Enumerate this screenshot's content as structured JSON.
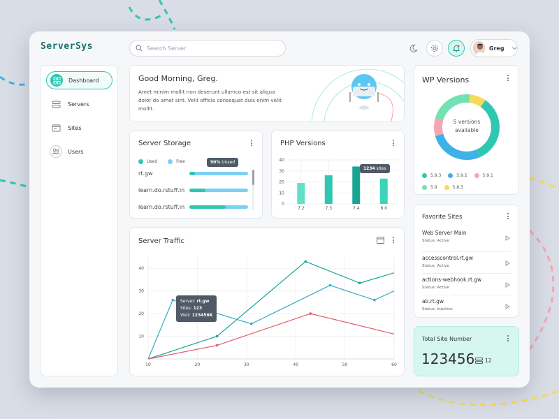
{
  "app": {
    "logo": "ServerSys"
  },
  "header": {
    "search_placeholder": "Search Server",
    "user_name": "Greg"
  },
  "sidebar": {
    "items": [
      {
        "label": "Dashboard",
        "icon": "dashboard-icon",
        "active": true
      },
      {
        "label": "Servers",
        "icon": "server-icon",
        "active": false
      },
      {
        "label": "Sites",
        "icon": "sites-icon",
        "active": false
      },
      {
        "label": "Users",
        "icon": "users-icon",
        "active": false
      }
    ]
  },
  "greeting": {
    "title": "Good Morning, Greg.",
    "text": "Amet minim mollit non deserunt ullamco est sit aliqua dolor do amet sint. Velit officia consequat duis enim velit mollit."
  },
  "server_storage": {
    "title": "Server Storage",
    "legend": [
      {
        "label": "Used",
        "color": "#2fc7b1"
      },
      {
        "label": "Free",
        "color": "#7dd0f5"
      }
    ],
    "tooltip_value": "90%",
    "tooltip_text": "Unsed",
    "rows": [
      {
        "label": "rt.gw",
        "used": 0.1
      },
      {
        "label": "learn.do.rstuff.in",
        "used": 0.27
      },
      {
        "label": "learn.do.rstuff.in",
        "used": 0.62
      }
    ]
  },
  "php_versions": {
    "title": "PHP Versions",
    "tooltip_value": "1234",
    "tooltip_text": "sites",
    "chart_data": {
      "type": "bar",
      "categories": [
        "7.2",
        "7.3",
        "7.4",
        "8.0"
      ],
      "values": [
        19,
        26,
        34,
        23
      ],
      "ylim": [
        0,
        40
      ],
      "yticks": [
        0,
        10,
        20,
        30,
        40
      ],
      "colors": [
        "#62e0c5",
        "#2fc7b1",
        "#19a594",
        "#3dd4b8"
      ],
      "grid": true
    }
  },
  "server_traffic": {
    "title": "Server Traffic",
    "tooltip": {
      "server_label": "Server:",
      "server_value": "rt.gw",
      "sites_label": "Sites:",
      "sites_value": "123",
      "visit_label": "Visit:",
      "visit_value": "123456K"
    },
    "chart_data": {
      "type": "line",
      "xlim": [
        10,
        60
      ],
      "ylim": [
        0,
        45
      ],
      "xticks": [
        10,
        20,
        30,
        40,
        50,
        60
      ],
      "yticks": [
        10,
        20,
        30,
        40
      ],
      "grid": true,
      "series": [
        {
          "color": "#19a594",
          "points": [
            [
              10,
              0
            ],
            [
              24,
              10
            ],
            [
              42,
              43
            ],
            [
              53,
              33.5
            ],
            [
              60,
              38
            ]
          ]
        },
        {
          "color": "#3aa8c8",
          "points": [
            [
              10,
              0
            ],
            [
              15,
              26
            ],
            [
              31,
              15.5
            ],
            [
              47,
              32.5
            ],
            [
              56,
              26
            ],
            [
              60,
              30
            ]
          ]
        },
        {
          "color": "#e35a6b",
          "points": [
            [
              10,
              0
            ],
            [
              24,
              6
            ],
            [
              43,
              20
            ],
            [
              60,
              11
            ]
          ]
        }
      ]
    }
  },
  "wp_versions": {
    "title": "WP Versions",
    "center_text_1": "5 versions",
    "center_text_2": "available",
    "chart_data": {
      "type": "pie",
      "donut": true,
      "labels": [
        "5.9.3",
        "5.9.2",
        "5.9.1",
        "5.9",
        "5.8.3"
      ],
      "values": [
        34,
        27,
        9,
        22,
        8
      ],
      "colors": [
        "#2fc7b1",
        "#3eb1e8",
        "#f4a6b1",
        "#70e2b3",
        "#f6da5a"
      ]
    }
  },
  "favorite_sites": {
    "title": "Favorite Sites",
    "items": [
      {
        "name": "Web Server Main",
        "status": "Status: Active"
      },
      {
        "name": "accesscontrol.rt.gw",
        "status": "Status: Active"
      },
      {
        "name": "actions-webhook.rt.gw",
        "status": "Status: Active"
      },
      {
        "name": "ab.rt.gw",
        "status": "Status: Inactive"
      }
    ]
  },
  "total_sites": {
    "title": "Total Site Number",
    "value": "123456",
    "sub_value": "12"
  }
}
